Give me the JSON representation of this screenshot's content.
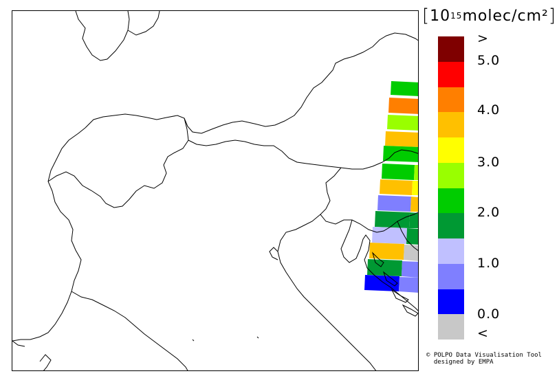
{
  "legend": {
    "unit_open": "[",
    "unit_text": "10",
    "unit_exp": "15",
    "unit_rest": " molec/cm²",
    "unit_close": "]",
    "labels": [
      ">",
      "5.0",
      "4.0",
      "3.0",
      "2.0",
      "1.0",
      "0.0",
      "<"
    ],
    "colors": [
      "#7f0000",
      "#ff0000",
      "#ff7f00",
      "#ffc000",
      "#ffff00",
      "#99ff00",
      "#00cc00",
      "#009933",
      "#c0c0ff",
      "#7f7fff",
      "#0000ff",
      "#c8c8c8"
    ]
  },
  "credit": {
    "line1": "© POLPO Data Visualisation Tool",
    "line2": "  designed by EMPA"
  }
}
